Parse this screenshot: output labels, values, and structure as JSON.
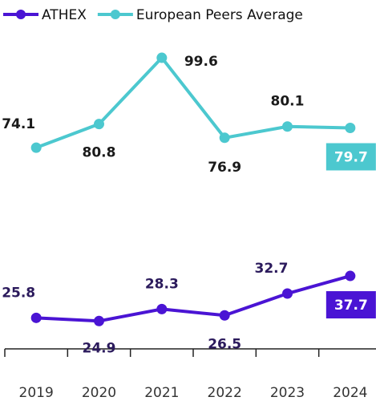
{
  "chart_data": {
    "type": "line",
    "categories": [
      "2019",
      "2020",
      "2021",
      "2022",
      "2023",
      "2024"
    ],
    "series": [
      {
        "name": "ATHEX",
        "color": "#4a14d4",
        "label_color": "#2b1a5c",
        "values": [
          25.8,
          24.9,
          28.3,
          26.5,
          32.7,
          37.7
        ]
      },
      {
        "name": "European Peers Average",
        "color": "#4cc8cf",
        "label_color": "#1a1a1a",
        "values": [
          74.1,
          80.8,
          99.6,
          76.9,
          80.1,
          79.7
        ]
      }
    ],
    "ylim": [
      17,
      116
    ],
    "legend": "top-left"
  }
}
